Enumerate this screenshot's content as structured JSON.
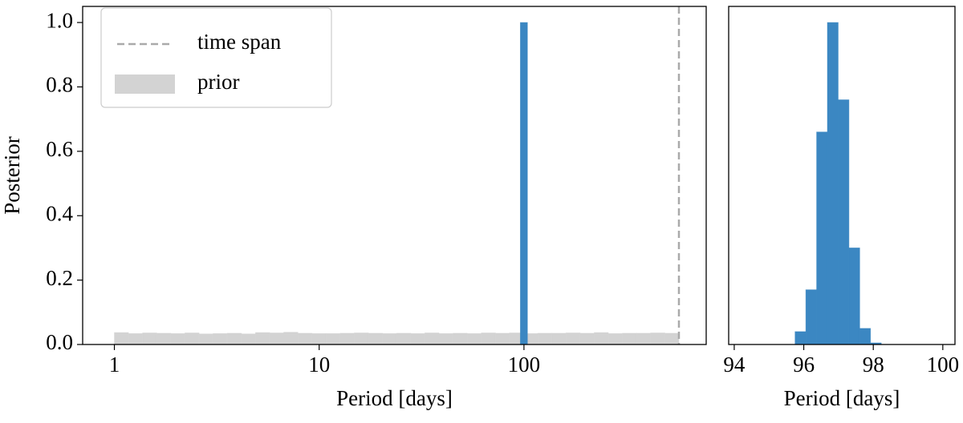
{
  "chart_data": [
    {
      "type": "histogram",
      "xlabel": "Period [days]",
      "ylabel": "Posterior",
      "xscale": "log",
      "xlim": [
        0.7,
        776
      ],
      "xticks": [
        1,
        10,
        100
      ],
      "ylim": [
        0,
        1.05
      ],
      "yticks": [
        {
          "value": 0,
          "label": "0.0"
        },
        0.2,
        0.4,
        0.6,
        0.8,
        {
          "value": 1,
          "label": "1.0"
        }
      ],
      "legend": "upper left",
      "series": [
        {
          "name": "prior",
          "color": "#d3d3d3",
          "bins": [
            1,
            1.172,
            1.373,
            1.609,
            1.886,
            2.211,
            2.591,
            3.037,
            3.558,
            4.171,
            4.889,
            5.729,
            6.714,
            7.869,
            9.222,
            10.81,
            12.67,
            14.85,
            17.4,
            20.39,
            23.89,
            28.01,
            32.82,
            38.46,
            45.08,
            52.83,
            61.92,
            72.56,
            85.04,
            99.66,
            116.8,
            136.9,
            160.4,
            188,
            220.3,
            258.2,
            302.6,
            354.7,
            415.6,
            487.2,
            571
          ],
          "values": [
            0.037,
            0.034,
            0.036,
            0.035,
            0.034,
            0.036,
            0.033,
            0.034,
            0.035,
            0.033,
            0.037,
            0.036,
            0.038,
            0.035,
            0.034,
            0.034,
            0.035,
            0.036,
            0.035,
            0.034,
            0.035,
            0.034,
            0.036,
            0.034,
            0.035,
            0.034,
            0.036,
            0.035,
            0.036,
            0.034,
            0.035,
            0.035,
            0.036,
            0.035,
            0.037,
            0.034,
            0.035,
            0.035,
            0.036,
            0.035
          ]
        },
        {
          "color": "#3b87c2",
          "bins": [
            96,
            104
          ],
          "values": [
            1.0
          ]
        }
      ],
      "vline": {
        "name": "time span",
        "x": 571,
        "color": "#aaaaaa",
        "style": "dashed"
      }
    },
    {
      "type": "histogram",
      "xlabel": "Period [days]",
      "xlim": [
        93.84,
        100.35
      ],
      "xticks": [
        94,
        96,
        98,
        100
      ],
      "ylim": [
        0,
        1.05
      ],
      "series": [
        {
          "color": "#3b87c2",
          "bins": [
            95.75,
            96.06,
            96.37,
            96.68,
            96.99,
            97.3,
            97.61,
            97.92,
            98.23
          ],
          "values": [
            0.04,
            0.17,
            0.66,
            1.0,
            0.76,
            0.3,
            0.05,
            0.005
          ]
        }
      ]
    }
  ]
}
